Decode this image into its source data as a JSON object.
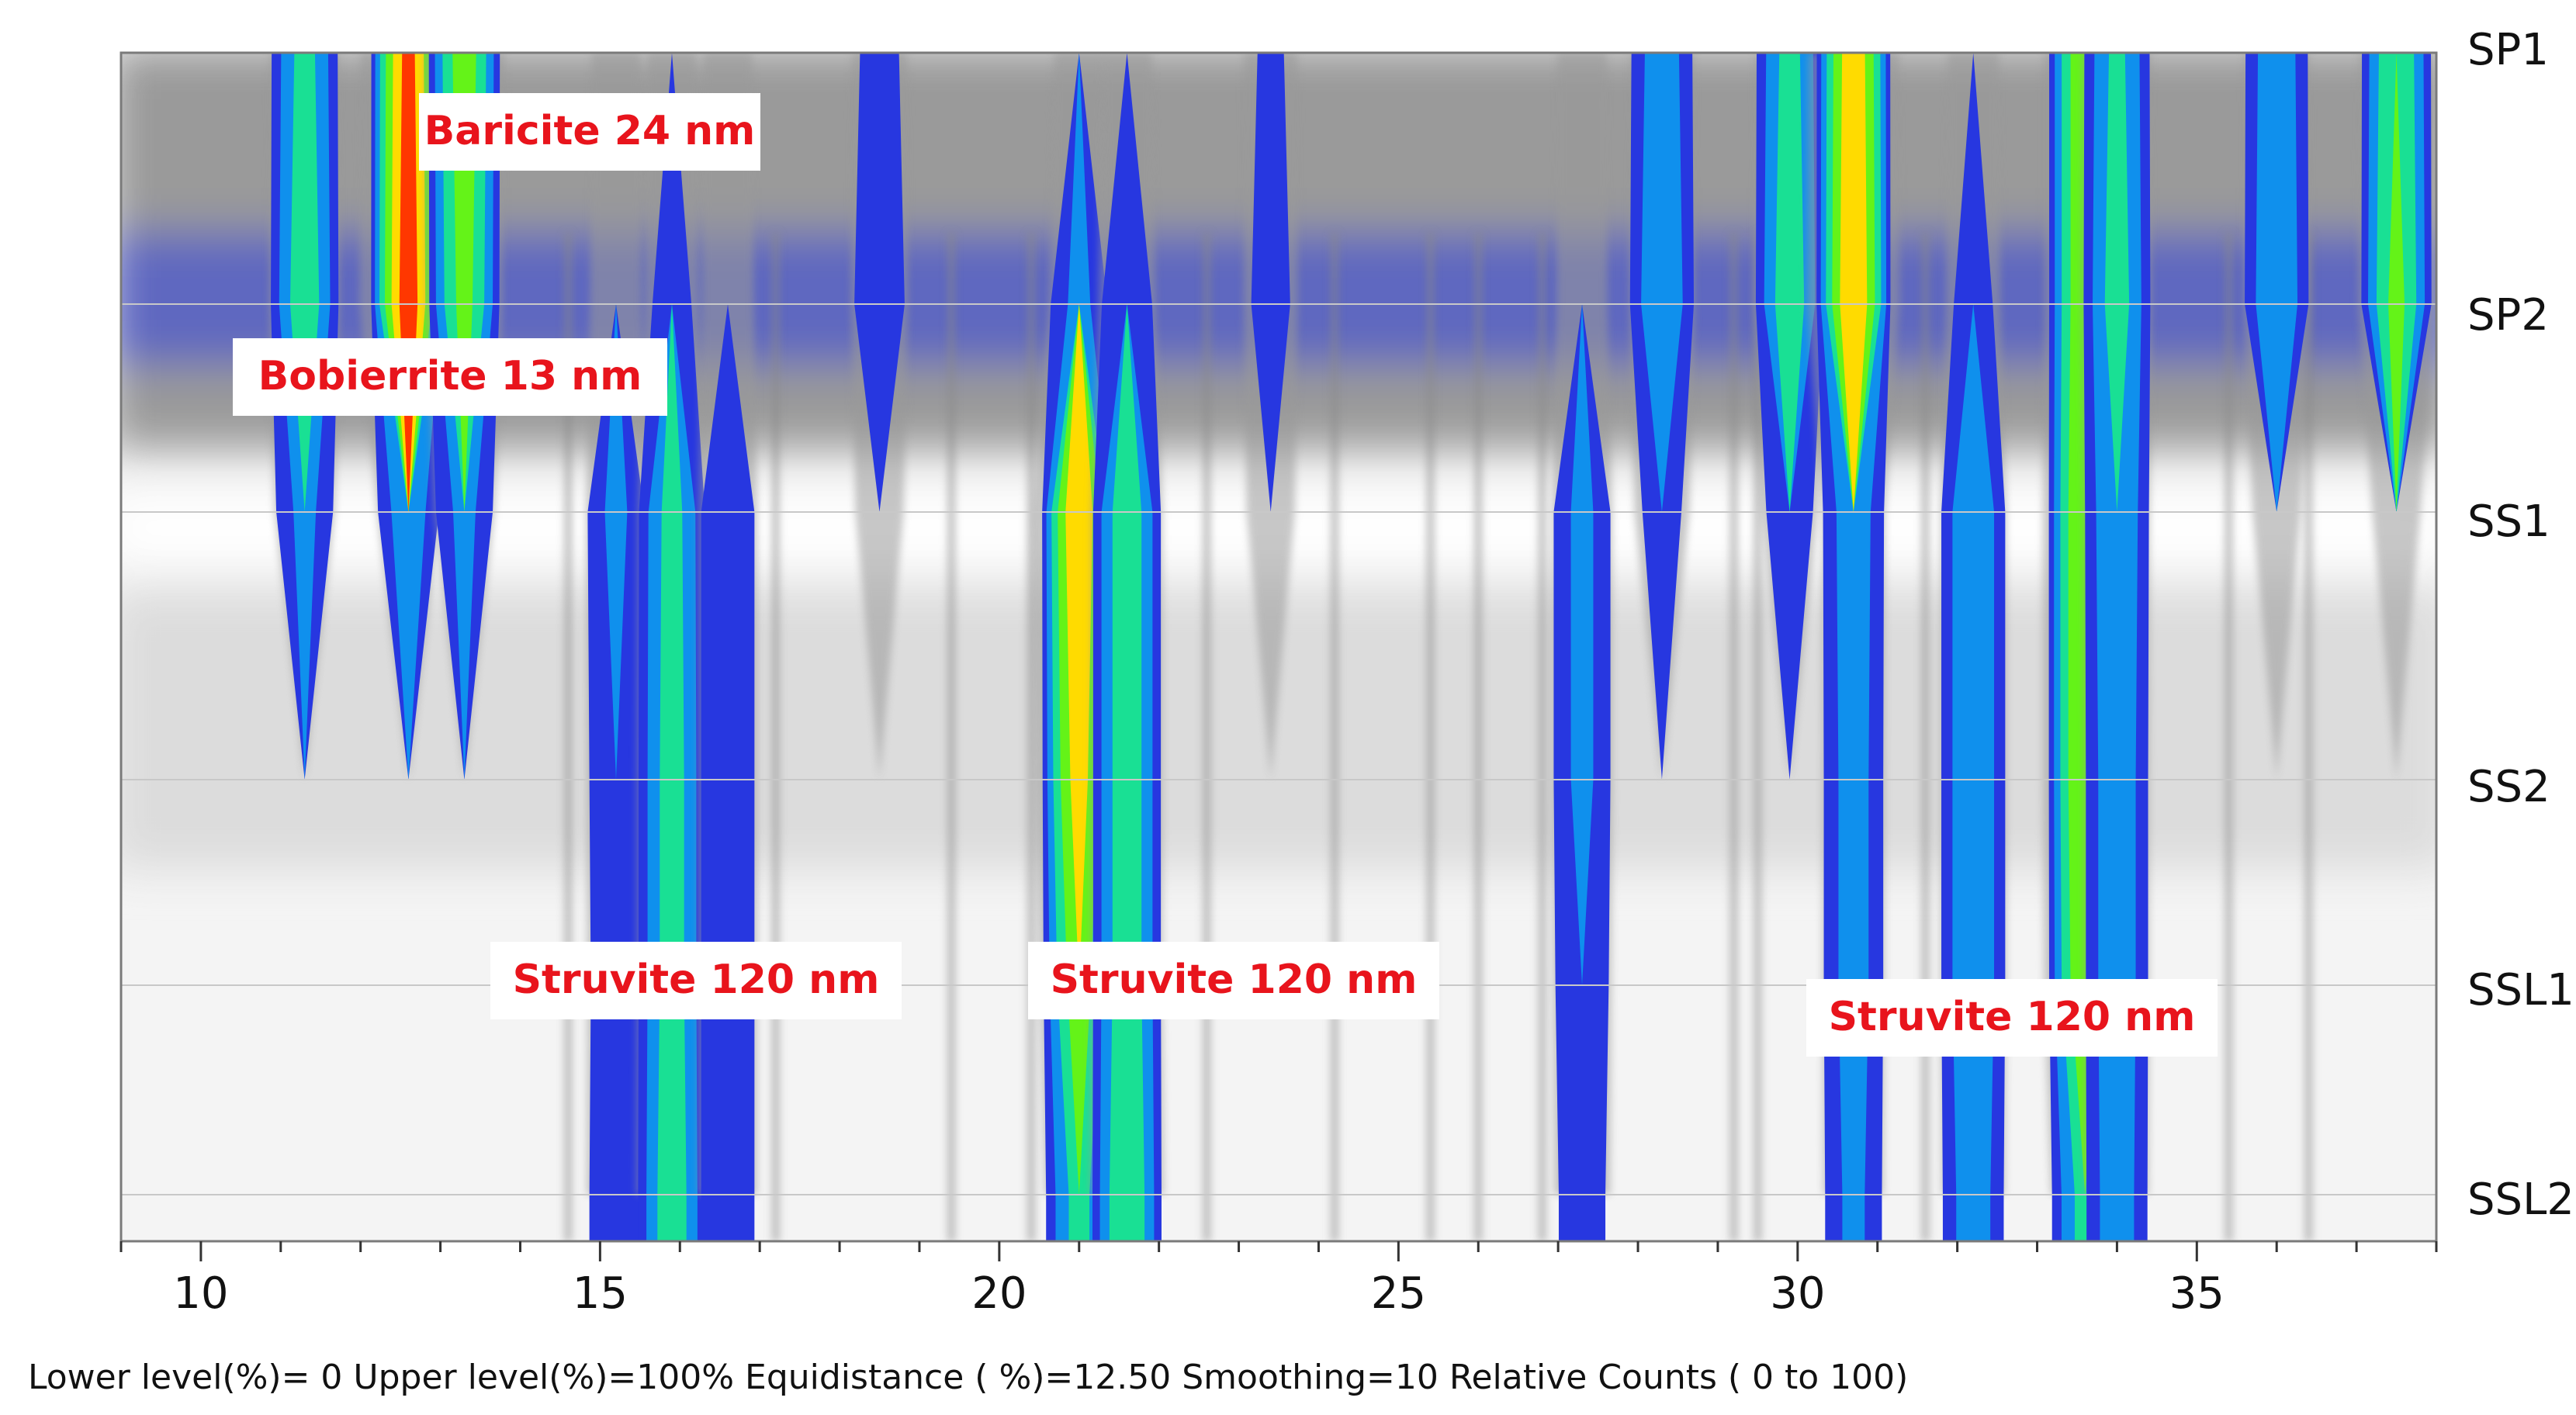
{
  "chart_data": {
    "type": "heatmap",
    "title": "",
    "xlabel": "",
    "ylabel": "",
    "x_range": [
      9,
      38
    ],
    "x_ticks": [
      10,
      15,
      20,
      25,
      30,
      35
    ],
    "x_tick_labels": [
      "10",
      "15",
      "20",
      "25",
      "30",
      "35"
    ],
    "samples": [
      "SP1",
      "SP2",
      "SS1",
      "SS2",
      "SSL1",
      "SSL2"
    ],
    "color_scale": [
      "#ffffff",
      "#b5b5b5",
      "#0a1ee8",
      "#12d4f0",
      "#22ee22",
      "#ffff00",
      "#ff0000"
    ],
    "intensity_range": [
      0,
      100
    ],
    "peaks": [
      {
        "x": 11.3,
        "intensities": [
          40,
          45,
          25,
          0,
          0,
          0
        ]
      },
      {
        "x": 12.6,
        "intensities": [
          90,
          95,
          30,
          0,
          0,
          0
        ]
      },
      {
        "x": 13.3,
        "intensities": [
          60,
          55,
          25,
          0,
          0,
          0
        ]
      },
      {
        "x": 15.2,
        "intensities": [
          3,
          10,
          25,
          22,
          20,
          22
        ]
      },
      {
        "x": 15.9,
        "intensities": [
          3,
          15,
          40,
          42,
          42,
          45
        ]
      },
      {
        "x": 16.6,
        "intensities": [
          3,
          10,
          22,
          22,
          22,
          22
        ]
      },
      {
        "x": 18.5,
        "intensities": [
          15,
          20,
          3,
          0,
          0,
          0
        ]
      },
      {
        "x": 21.0,
        "intensities": [
          5,
          25,
          85,
          75,
          60,
          40
        ]
      },
      {
        "x": 21.6,
        "intensities": [
          5,
          20,
          45,
          45,
          45,
          50
        ]
      },
      {
        "x": 23.4,
        "intensities": [
          12,
          15,
          3,
          0,
          0,
          0
        ]
      },
      {
        "x": 27.3,
        "intensities": [
          5,
          8,
          25,
          25,
          22,
          18
        ]
      },
      {
        "x": 28.3,
        "intensities": [
          30,
          35,
          15,
          0,
          0,
          0
        ]
      },
      {
        "x": 29.9,
        "intensities": [
          40,
          45,
          18,
          0,
          0,
          0
        ]
      },
      {
        "x": 30.7,
        "intensities": [
          80,
          85,
          30,
          28,
          28,
          25
        ]
      },
      {
        "x": 32.2,
        "intensities": [
          8,
          15,
          35,
          35,
          35,
          30
        ]
      },
      {
        "x": 33.6,
        "intensities": [
          65,
          65,
          70,
          70,
          65,
          40
        ]
      },
      {
        "x": 34.0,
        "intensities": [
          38,
          42,
          35,
          32,
          32,
          30
        ]
      },
      {
        "x": 36.0,
        "intensities": [
          32,
          35,
          3,
          0,
          0,
          0
        ]
      },
      {
        "x": 37.5,
        "intensities": [
          50,
          55,
          3,
          0,
          0,
          0
        ]
      }
    ],
    "annotations": [
      {
        "text": "Baricite 24 nm",
        "x": 12.8,
        "y": "SP1-SP2"
      },
      {
        "text": "Bobierrite 13 nm",
        "x": 11.5,
        "y": "SP2-SS1"
      },
      {
        "text": "Struvite 120 nm",
        "x": 15.0,
        "y": "SSL1"
      },
      {
        "text": "Struvite 120 nm",
        "x": 21.6,
        "y": "SSL1"
      },
      {
        "text": "Struvite 120 nm",
        "x": 32.5,
        "y": "SSL1-SSL2"
      }
    ]
  },
  "footer": {
    "text": "Lower level(%)= 0  Upper level(%)=100%  Equidistance ( %)=12.50  Smoothing=10  Relative Counts ( 0 to 100)"
  }
}
